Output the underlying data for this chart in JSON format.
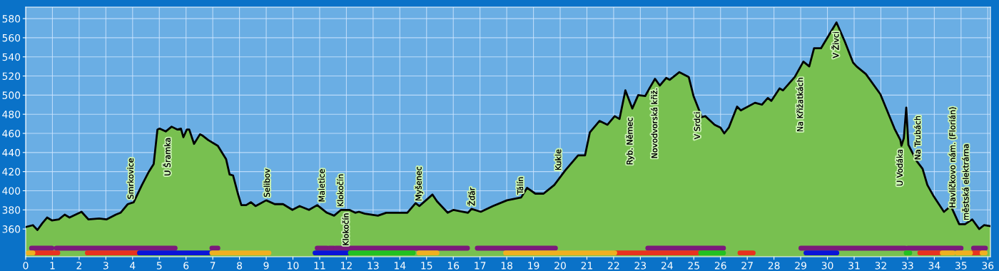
{
  "chart_data": {
    "type": "area",
    "x": [
      0,
      0.27,
      0.44,
      0.62,
      0.8,
      0.98,
      1.24,
      1.46,
      1.64,
      2.09,
      2.35,
      2.75,
      3.02,
      3.37,
      3.55,
      3.82,
      4.04,
      4.35,
      4.61,
      4.79,
      4.93,
      5.01,
      5.24,
      5.46,
      5.68,
      5.81,
      5.9,
      6.03,
      6.12,
      6.3,
      6.52,
      6.6,
      6.83,
      7.19,
      7.5,
      7.63,
      7.76,
      7.94,
      8.07,
      8.25,
      8.43,
      8.6,
      9.0,
      9.32,
      9.63,
      9.98,
      10.25,
      10.6,
      10.91,
      11.27,
      11.54,
      11.8,
      12.11,
      12.33,
      12.47,
      12.69,
      13.18,
      13.49,
      14.28,
      14.59,
      14.73,
      15.22,
      15.39,
      15.79,
      16.01,
      16.55,
      16.68,
      17.03,
      17.48,
      18.01,
      18.54,
      18.76,
      19.07,
      19.38,
      19.78,
      20.18,
      20.67,
      20.93,
      21.11,
      21.47,
      21.77,
      22.04,
      22.22,
      22.44,
      22.7,
      22.92,
      23.18,
      23.36,
      23.55,
      23.73,
      23.97,
      24.1,
      24.46,
      24.81,
      24.99,
      25.3,
      25.43,
      25.78,
      26.0,
      26.14,
      26.31,
      26.62,
      26.76,
      27.29,
      27.55,
      27.77,
      27.9,
      28.21,
      28.34,
      28.78,
      29.1,
      29.32,
      29.5,
      29.76,
      30.34,
      30.65,
      30.96,
      31.09,
      31.44,
      31.98,
      32.51,
      32.73,
      32.77,
      32.86,
      32.95,
      33.03,
      33.34,
      33.56,
      33.74,
      33.96,
      34.36,
      34.62,
      34.93,
      35.15,
      35.42,
      35.68,
      35.86,
      36.1
    ],
    "series": [
      {
        "color": "#78c050",
        "values": [
          362,
          364,
          359,
          366,
          372,
          369,
          370,
          375,
          372,
          378,
          370,
          371,
          370,
          375,
          377,
          386,
          388,
          406,
          420,
          428,
          464,
          465,
          462,
          467,
          464,
          465,
          456,
          464,
          464,
          449,
          459,
          458,
          453,
          447,
          433,
          417,
          416,
          397,
          385,
          385,
          388,
          384,
          390,
          386,
          386,
          380,
          384,
          380,
          385,
          377,
          374,
          380,
          380,
          377,
          378,
          376,
          374,
          377,
          377,
          387,
          384,
          396,
          389,
          377,
          380,
          377,
          381,
          378,
          384,
          390,
          393,
          403,
          397,
          397,
          406,
          421,
          437,
          437,
          461,
          473,
          469,
          478,
          475,
          505,
          486,
          500,
          499,
          508,
          517,
          510,
          518,
          516,
          524,
          519,
          499,
          477,
          478,
          469,
          466,
          460,
          466,
          488,
          484,
          492,
          490,
          497,
          494,
          507,
          505,
          519,
          535,
          530,
          549,
          549,
          576,
          556,
          534,
          530,
          522,
          501,
          465,
          453,
          447,
          455,
          487,
          448,
          431,
          423,
          406,
          395,
          378,
          384,
          365,
          365,
          370,
          360,
          364,
          363
        ]
      },
      {
        "type": "line",
        "color": "#7b1a7b",
        "x": [
          0.22,
          0.98
        ],
        "values": [
          340,
          340
        ]
      },
      {
        "type": "line",
        "color": "#7b1a7b",
        "x": [
          1.15,
          5.59
        ],
        "values": [
          340,
          340
        ]
      },
      {
        "type": "line",
        "color": "#7b1a7b",
        "x": [
          6.97,
          7.19
        ],
        "values": [
          340,
          340
        ]
      },
      {
        "type": "line",
        "color": "#7b1a7b",
        "x": [
          10.91,
          11.27
        ],
        "values": [
          340,
          340
        ]
      },
      {
        "type": "line",
        "color": "#7b1a7b",
        "x": [
          11.36,
          11.53
        ],
        "values": [
          340,
          340
        ]
      },
      {
        "type": "line",
        "color": "#7b1a7b",
        "x": [
          11.61,
          16.53
        ],
        "values": [
          340,
          340
        ]
      },
      {
        "type": "line",
        "color": "#7b1a7b",
        "x": [
          16.9,
          19.82
        ],
        "values": [
          340,
          340
        ]
      },
      {
        "type": "line",
        "color": "#7b1a7b",
        "x": [
          23.28,
          26.11
        ],
        "values": [
          340,
          340
        ]
      },
      {
        "type": "line",
        "color": "#7b1a7b",
        "x": [
          29.01,
          32.92
        ],
        "values": [
          340,
          340
        ]
      },
      {
        "type": "line",
        "color": "#7b1a7b",
        "x": [
          33.01,
          35.0
        ],
        "values": [
          340,
          340
        ]
      },
      {
        "type": "line",
        "color": "#7b1a7b",
        "x": [
          35.47,
          35.91
        ],
        "values": [
          340,
          340
        ]
      },
      {
        "type": "line",
        "color": "#e8321e",
        "x": [
          0.3,
          1.2
        ],
        "values": [
          335,
          335
        ]
      },
      {
        "type": "line",
        "color": "#e8321e",
        "x": [
          2.31,
          4.21
        ],
        "values": [
          335,
          335
        ]
      },
      {
        "type": "line",
        "color": "#e8321e",
        "x": [
          22.08,
          25.26
        ],
        "values": [
          335,
          335
        ]
      },
      {
        "type": "line",
        "color": "#e8321e",
        "x": [
          26.73,
          27.22
        ],
        "values": [
          335,
          335
        ]
      },
      {
        "type": "line",
        "color": "#e8321e",
        "x": [
          33.46,
          34.3
        ],
        "values": [
          335,
          335
        ]
      },
      {
        "type": "line",
        "color": "#e8321e",
        "x": [
          35.35,
          35.79
        ],
        "values": [
          335,
          335
        ]
      },
      {
        "type": "line",
        "color": "#0a14d8",
        "x": [
          4.26,
          6.92
        ],
        "values": [
          335,
          335
        ]
      },
      {
        "type": "line",
        "color": "#0a14d8",
        "x": [
          10.83,
          12.11
        ],
        "values": [
          335,
          335
        ]
      },
      {
        "type": "line",
        "color": "#0a14d8",
        "x": [
          29.2,
          30.35
        ],
        "values": [
          335,
          335
        ]
      },
      {
        "type": "line",
        "color": "#f0b020",
        "x": [
          6.97,
          9.1
        ],
        "values": [
          335,
          335
        ]
      },
      {
        "type": "line",
        "color": "#f0b020",
        "x": [
          14.72,
          15.39
        ],
        "values": [
          335,
          335
        ]
      },
      {
        "type": "line",
        "color": "#f0b020",
        "x": [
          17.96,
          22.04
        ],
        "values": [
          335,
          335
        ]
      },
      {
        "type": "line",
        "color": "#f0b020",
        "x": [
          34.3,
          34.7
        ],
        "values": [
          335,
          335
        ]
      },
      {
        "type": "line",
        "color": "#f0b020",
        "x": [
          34.86,
          35.35
        ],
        "values": [
          335,
          335
        ]
      },
      {
        "type": "line",
        "color": "#f0b020",
        "x": [
          35.79,
          35.9
        ],
        "values": [
          335,
          335
        ]
      },
      {
        "type": "line",
        "color": "#f0b020",
        "x": [
          0.1,
          0.27
        ],
        "values": [
          335,
          335
        ]
      },
      {
        "type": "line",
        "color": "#22c020",
        "x": [
          12.15,
          14.5
        ],
        "values": [
          335,
          335
        ]
      },
      {
        "type": "line",
        "color": "#22c020",
        "x": [
          25.26,
          26.11
        ],
        "values": [
          335,
          335
        ]
      },
      {
        "type": "line",
        "color": "#22c020",
        "x": [
          32.95,
          33.08
        ],
        "values": [
          335,
          335
        ]
      }
    ],
    "xlim": [
      0,
      36.1
    ],
    "ylim": [
      331,
      592
    ],
    "xticks": [
      0,
      1,
      2,
      3,
      4,
      5,
      6,
      7,
      8,
      9,
      10,
      11,
      12,
      13,
      14,
      15,
      16,
      17,
      18,
      19,
      20,
      21,
      22,
      23,
      24,
      25,
      26,
      27,
      28,
      29,
      30,
      31,
      32,
      33,
      34,
      35,
      36
    ],
    "yticks": [
      360,
      380,
      400,
      420,
      440,
      460,
      480,
      500,
      520,
      540,
      560,
      580
    ],
    "grid": true,
    "annotations": [
      {
        "text": "Smrkovice",
        "x": 3.95,
        "y": 388
      },
      {
        "text": "U Šramka",
        "x": 5.33,
        "y": 465
      },
      {
        "text": "Selibov",
        "x": 9.05,
        "y": 390
      },
      {
        "text": "Maletice",
        "x": 11.1,
        "y": 385
      },
      {
        "text": "Klokočín",
        "x": 11.8,
        "y": 380
      },
      {
        "text": "Klokočín",
        "x": 12.0,
        "y": 380
      },
      {
        "text": "Myšenec",
        "x": 14.72,
        "y": 386
      },
      {
        "text": "Žďár",
        "x": 16.72,
        "y": 381
      },
      {
        "text": "Tálín",
        "x": 18.53,
        "y": 393
      },
      {
        "text": "Kukle",
        "x": 19.95,
        "y": 418
      },
      {
        "text": "Ryb. Němec",
        "x": 22.62,
        "y": 486
      },
      {
        "text": "Novodvorská křiž.",
        "x": 23.55,
        "y": 517
      },
      {
        "text": "V Srdci",
        "x": 25.15,
        "y": 492
      },
      {
        "text": "Na Křižatkách",
        "x": 29.0,
        "y": 528
      },
      {
        "text": "V Živci",
        "x": 30.34,
        "y": 576
      },
      {
        "text": "U Vodáka",
        "x": 32.73,
        "y": 453
      },
      {
        "text": "Na Trubách",
        "x": 33.4,
        "y": 429
      },
      {
        "text": "Havlíčkovo nám. (Florián)",
        "x": 34.7,
        "y": 379
      },
      {
        "text": "městská elektrárna",
        "x": 35.2,
        "y": 366
      }
    ]
  }
}
